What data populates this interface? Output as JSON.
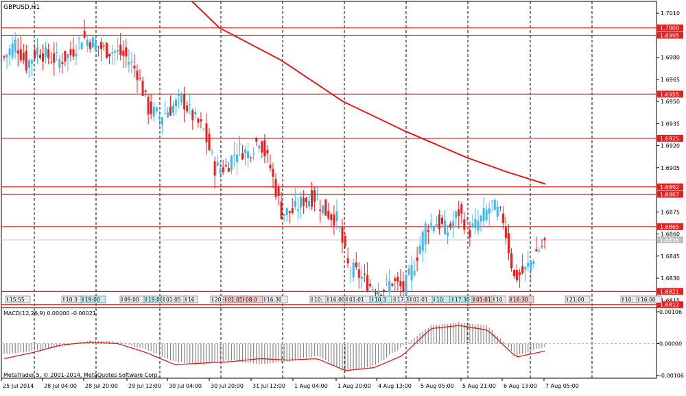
{
  "symbol_title": "GBPUSD,H1",
  "macd_label": "MACD(12,26,9) 0.00000 -0.00021",
  "copyright": "MetaTrader 5, © 2001-2014, MetaQuotes Software Corp.",
  "colors": {
    "background": "#ffffff",
    "bull_candle": "#3eb7ef",
    "bear_candle": "#ee1c1c",
    "moving_average": "#e81818",
    "level_line": "#ee1c1c",
    "grid": "#000000",
    "macd_histogram": "#888888",
    "macd_signal": "#e81818"
  },
  "price_axis": {
    "min": 1.681,
    "max": 1.7018,
    "ticks": [
      "1.7010",
      "1.6980",
      "1.6965",
      "1.6950",
      "1.6935",
      "1.6920",
      "1.6905",
      "1.6875",
      "1.6860",
      "1.6845",
      "1.6830",
      "1.6815"
    ]
  },
  "price_levels": [
    "1.7000",
    "1.6995",
    "1.6955",
    "1.6925",
    "1.6892",
    "1.6887",
    "1.6865",
    "1.6821",
    "1.6812"
  ],
  "current_price": "1.6856",
  "macd_axis": {
    "ticks": [
      "0.00106",
      "0.00000",
      "-0.00106"
    ]
  },
  "time_axis": [
    "25 Jul 2014",
    "28 Jul 04:00",
    "28 Jul 20:00",
    "29 Jul 12:00",
    "30 Jul 04:00",
    "30 Jul 20:00",
    "31 Jul 12:00",
    "1 Aug 04:00",
    "1 Aug 20:00",
    "4 Aug 13:00",
    "5 Aug 05:00",
    "5 Aug 21:00",
    "6 Aug 13:00",
    "7 Aug 05:00"
  ],
  "event_markers": [
    {
      "label": "15:55",
      "kind": "gray"
    },
    {
      "label": "10:3",
      "kind": "gray"
    },
    {
      "label": "19:00",
      "kind": "cyan"
    },
    {
      "label": "09:00",
      "kind": "gray"
    },
    {
      "label": "19:00",
      "kind": "cyan"
    },
    {
      "label": "01:05",
      "kind": "gray"
    },
    {
      "label": "16",
      "kind": "gray"
    },
    {
      "label": "20:0",
      "kind": "gray"
    },
    {
      "label": "01:05",
      "kind": "pink"
    },
    {
      "label": "08:0",
      "kind": "pink"
    },
    {
      "label": "16:30",
      "kind": "gray"
    },
    {
      "label": "10:",
      "kind": "gray"
    },
    {
      "label": "16:00",
      "kind": "gray"
    },
    {
      "label": "01:01",
      "kind": "gray"
    },
    {
      "label": "10:3",
      "kind": "cyan"
    },
    {
      "label": "17:30",
      "kind": "gray"
    },
    {
      "label": "01:01",
      "kind": "gray"
    },
    {
      "label": "10:",
      "kind": "cyan"
    },
    {
      "label": "17:30",
      "kind": "cyan"
    },
    {
      "label": "01:01",
      "kind": "pink"
    },
    {
      "label": "10",
      "kind": "gray"
    },
    {
      "label": "16:30",
      "kind": "pink"
    },
    {
      "label": "21:00",
      "kind": "gray"
    },
    {
      "label": "10:",
      "kind": "gray"
    },
    {
      "label": "16:00",
      "kind": "gray"
    }
  ],
  "chart_data": {
    "type": "candlestick",
    "symbol": "GBPUSD",
    "timeframe": "H1",
    "ylim": [
      1.681,
      1.7018
    ],
    "x_labels": [
      "25 Jul 2014",
      "28 Jul 04:00",
      "28 Jul 20:00",
      "29 Jul 12:00",
      "30 Jul 04:00",
      "30 Jul 20:00",
      "31 Jul 12:00",
      "1 Aug 04:00",
      "1 Aug 20:00",
      "4 Aug 13:00",
      "5 Aug 05:00",
      "5 Aug 21:00",
      "6 Aug 13:00",
      "7 Aug 05:00"
    ],
    "close_path": [
      [
        0,
        1.698
      ],
      [
        4,
        1.699
      ],
      [
        8,
        1.6975
      ],
      [
        12,
        1.6985
      ],
      [
        16,
        1.698
      ],
      [
        20,
        1.6978
      ],
      [
        24,
        1.6982
      ],
      [
        28,
        1.6994
      ],
      [
        32,
        1.699
      ],
      [
        36,
        1.6985
      ],
      [
        40,
        1.6984
      ],
      [
        44,
        1.698
      ],
      [
        48,
        1.697
      ],
      [
        52,
        1.6945
      ],
      [
        56,
        1.694
      ],
      [
        60,
        1.6945
      ],
      [
        64,
        1.6952
      ],
      [
        68,
        1.694
      ],
      [
        72,
        1.693
      ],
      [
        76,
        1.6905
      ],
      [
        80,
        1.6905
      ],
      [
        84,
        1.6918
      ],
      [
        88,
        1.6915
      ],
      [
        92,
        1.6925
      ],
      [
        96,
        1.6905
      ],
      [
        100,
        1.6875
      ],
      [
        104,
        1.6875
      ],
      [
        108,
        1.6883
      ],
      [
        112,
        1.6885
      ],
      [
        116,
        1.6875
      ],
      [
        120,
        1.687
      ],
      [
        124,
        1.6838
      ],
      [
        128,
        1.6832
      ],
      [
        132,
        1.6825
      ],
      [
        136,
        1.6822
      ],
      [
        140,
        1.6828
      ],
      [
        144,
        1.6822
      ],
      [
        148,
        1.684
      ],
      [
        152,
        1.6865
      ],
      [
        156,
        1.6868
      ],
      [
        160,
        1.6862
      ],
      [
        164,
        1.6875
      ],
      [
        168,
        1.6862
      ],
      [
        172,
        1.687
      ],
      [
        176,
        1.688
      ],
      [
        180,
        1.687
      ],
      [
        184,
        1.683
      ],
      [
        188,
        1.6835
      ],
      [
        192,
        1.6848
      ],
      [
        196,
        1.6856
      ]
    ],
    "moving_average": [
      [
        1.698,
        1.7018
      ],
      [
        1.6925,
        1.696
      ],
      [
        1.688,
        1.6918
      ],
      [
        1.6863,
        1.6904
      ],
      [
        1.6857,
        1.6896
      ],
      [
        1.6854,
        1.6892
      ]
    ],
    "levels": [
      1.7,
      1.6995,
      1.6955,
      1.6925,
      1.6892,
      1.6887,
      1.6865,
      1.6821,
      1.6812
    ],
    "macd": {
      "params": "12,26,9",
      "main": 0.0,
      "signal": -0.00021,
      "ylim": [
        -0.00106,
        0.00106
      ],
      "histogram": [
        -0.00035,
        -0.00025,
        -0.0001,
        0.0001,
        5e-05,
        -0.0002,
        -0.0006,
        -0.0007,
        -0.00055,
        -0.0007,
        -0.0006,
        -0.0004,
        -0.00095,
        -0.00075,
        -0.0001,
        0.0006,
        0.0007,
        0.0006,
        -0.0004,
        -0.0001
      ],
      "signal_line": [
        -0.0005,
        -0.0003,
        -5e-05,
        5e-05,
        0.0,
        -0.0003,
        -0.0007,
        -0.00065,
        -0.0006,
        -0.0005,
        -0.00055,
        -0.0005,
        -0.0009,
        -0.0008,
        -0.0004,
        0.0005,
        0.0006,
        0.00045,
        -0.00045,
        -0.00025
      ]
    }
  }
}
